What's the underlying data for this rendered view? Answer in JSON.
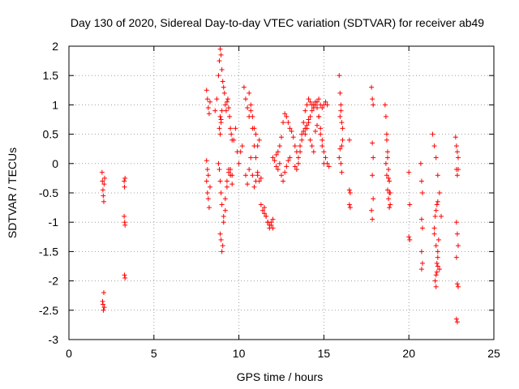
{
  "chart_data": {
    "type": "scatter",
    "title": "Day 130 of 2020, Sidereal Day-to-day VTEC variation (SDTVAR) for receiver ab49",
    "xlabel": "GPS time / hours",
    "ylabel": "SDTVAR / TECUs",
    "xlim": [
      0,
      25
    ],
    "ylim": [
      -3,
      2
    ],
    "xticks": [
      0,
      5,
      10,
      15,
      20,
      25
    ],
    "yticks": [
      -3,
      -2.5,
      -2,
      -1.5,
      -1,
      -0.5,
      0,
      0.5,
      1,
      1.5,
      2
    ],
    "xtick_labels": [
      "0",
      "5",
      "10",
      "15",
      "20",
      "25"
    ],
    "ytick_labels": [
      "-3",
      "-2.5",
      "-2",
      "-1.5",
      "-1",
      "-0.5",
      "0",
      "0.5",
      "1",
      "1.5",
      "2"
    ],
    "grid": true,
    "marker": "+",
    "color": "#ff0000",
    "series": [
      {
        "name": "SDTVAR",
        "x": [
          1.95,
          1.97,
          2.0,
          2.02,
          2.05,
          2.07,
          2.1,
          1.98,
          2.0,
          2.03,
          2.05,
          2.08,
          3.25,
          3.27,
          3.3,
          3.25,
          3.28,
          3.3,
          3.27,
          3.3,
          8.1,
          8.15,
          8.2,
          8.25,
          8.3,
          8.1,
          8.15,
          8.2,
          8.25,
          8.1,
          8.15,
          8.2,
          8.3,
          8.6,
          8.7,
          8.8,
          8.85,
          8.9,
          8.95,
          9.0,
          9.05,
          9.1,
          9.15,
          9.2,
          9.25,
          9.3,
          9.35,
          9.4,
          9.45,
          9.5,
          9.55,
          9.6,
          8.8,
          8.85,
          8.9,
          8.95,
          9.0,
          9.1,
          9.2,
          9.3,
          9.4,
          9.5,
          9.6,
          8.9,
          8.95,
          9.0,
          9.05,
          9.1,
          9.2,
          9.3,
          9.4,
          9.5,
          9.6,
          8.85,
          8.9,
          8.95,
          9.0,
          8.9,
          8.95,
          9.7,
          9.8,
          9.9,
          10.0,
          10.1,
          10.2,
          10.3,
          10.4,
          10.5,
          10.6,
          10.7,
          10.8,
          10.9,
          11.0,
          11.1,
          11.2,
          10.4,
          10.5,
          10.6,
          10.7,
          10.8,
          10.9,
          11.0,
          11.1,
          10.6,
          10.7,
          10.8,
          10.9,
          11.0,
          11.1,
          11.2,
          11.3,
          11.3,
          11.4,
          11.5,
          11.6,
          11.7,
          11.8,
          11.9,
          12.0,
          11.5,
          11.6,
          11.7,
          11.8,
          11.9,
          12.0,
          12.0,
          12.1,
          12.2,
          12.3,
          12.4,
          12.5,
          12.6,
          12.7,
          12.8,
          12.9,
          13.0,
          13.1,
          13.2,
          13.3,
          13.4,
          13.5,
          12.2,
          12.3,
          12.4,
          12.5,
          12.6,
          12.7,
          12.8,
          12.9,
          13.0,
          13.3,
          13.4,
          13.5,
          13.6,
          13.7,
          13.8,
          13.9,
          14.0,
          14.1,
          14.2,
          14.3,
          14.4,
          14.5,
          14.6,
          14.7,
          14.8,
          14.9,
          15.0,
          15.1,
          15.2,
          15.3,
          13.6,
          13.7,
          13.8,
          13.9,
          14.0,
          14.1,
          14.2,
          14.3,
          14.4,
          14.5,
          14.6,
          14.7,
          14.8,
          14.9,
          15.0,
          15.1,
          15.2,
          13.9,
          14.0,
          14.1,
          14.2,
          14.3,
          14.4,
          14.5,
          14.6,
          14.7,
          14.8,
          14.9,
          15.0,
          15.9,
          15.95,
          16.0,
          16.05,
          16.1,
          15.9,
          15.95,
          16.0,
          16.05,
          16.1,
          15.95,
          16.0,
          16.05,
          16.5,
          16.55,
          16.5,
          16.55,
          16.5,
          17.8,
          17.85,
          17.9,
          17.85,
          17.9,
          17.85,
          17.9,
          17.8,
          17.85,
          18.6,
          18.65,
          18.7,
          18.75,
          18.8,
          18.85,
          18.9,
          18.65,
          18.7,
          18.75,
          18.8,
          18.85,
          18.7,
          18.75,
          18.8,
          18.85,
          18.9,
          20.0,
          20.05,
          20.0,
          20.05,
          20.7,
          20.75,
          20.8,
          20.75,
          20.8,
          20.75,
          20.8,
          20.75,
          21.4,
          21.5,
          21.6,
          21.7,
          21.8,
          21.9,
          21.5,
          21.6,
          21.7,
          21.8,
          21.55,
          21.6,
          21.65,
          21.7,
          21.75,
          21.5,
          21.55,
          21.6,
          21.65,
          21.7,
          21.6,
          21.65,
          21.7,
          22.75,
          22.8,
          22.85,
          22.9,
          22.8,
          22.85,
          22.9,
          22.8,
          22.85,
          22.9,
          22.8,
          22.85,
          22.9,
          22.8,
          22.85
        ],
        "y": [
          -0.15,
          -0.3,
          -0.45,
          -0.55,
          -0.65,
          -0.35,
          -0.25,
          -2.35,
          -2.4,
          -2.5,
          -2.2,
          -2.45,
          -0.3,
          -0.4,
          -0.25,
          -0.9,
          -1.0,
          -1.05,
          -1.9,
          -1.95,
          1.25,
          1.1,
          0.95,
          0.85,
          1.05,
          -0.3,
          -0.5,
          -0.6,
          -0.75,
          0.05,
          -0.1,
          -0.2,
          -0.4,
          0.9,
          1.1,
          1.5,
          1.75,
          1.95,
          1.85,
          1.6,
          1.4,
          1.3,
          1.2,
          1.0,
          0.9,
          1.05,
          1.1,
          0.95,
          0.8,
          0.6,
          0.5,
          0.4,
          0.0,
          -0.1,
          -0.3,
          -0.5,
          -0.7,
          -0.9,
          -0.6,
          -0.3,
          -0.1,
          -0.2,
          -0.35,
          -1.2,
          -1.3,
          -1.5,
          -1.4,
          -1.0,
          -0.8,
          -0.4,
          -0.15,
          -0.1,
          -0.2,
          0.6,
          0.8,
          0.7,
          0.9,
          0.5,
          0.75,
          0.4,
          0.6,
          0.2,
          0.0,
          0.2,
          0.3,
          1.3,
          1.1,
          0.95,
          1.2,
          1.0,
          0.8,
          0.6,
          0.5,
          0.3,
          0.4,
          -0.2,
          -0.35,
          -0.1,
          0.1,
          -0.2,
          -0.4,
          -0.3,
          -0.15,
          0.8,
          0.9,
          0.6,
          0.3,
          0.1,
          -0.2,
          -0.3,
          -0.25,
          -0.7,
          -0.8,
          -0.85,
          -0.9,
          -1.0,
          -1.05,
          -1.0,
          -0.95,
          -0.75,
          -0.9,
          -1.0,
          -1.1,
          -1.05,
          -1.1,
          0.1,
          0.05,
          0.15,
          0.2,
          0.3,
          0.45,
          0.7,
          0.85,
          0.8,
          0.7,
          0.6,
          0.55,
          0.45,
          0.3,
          0.2,
          0.0,
          -0.05,
          -0.1,
          0.0,
          -0.2,
          -0.3,
          -0.15,
          -0.05,
          0.05,
          0.1,
          -0.05,
          -0.1,
          0.1,
          0.2,
          0.4,
          0.55,
          0.6,
          0.65,
          0.75,
          0.8,
          0.9,
          1.0,
          1.05,
          0.95,
          0.8,
          0.6,
          0.4,
          0.2,
          0.1,
          0.0,
          -0.05,
          0.3,
          0.5,
          0.7,
          0.9,
          1.0,
          1.1,
          1.05,
          1.0,
          0.95,
          1.0,
          1.05,
          1.1,
          1.0,
          0.95,
          1.0,
          1.05,
          1.0,
          0.5,
          0.6,
          0.7,
          0.4,
          0.3,
          0.2,
          0.55,
          0.65,
          0.8,
          0.5,
          0.3,
          0.0,
          1.5,
          1.2,
          0.9,
          0.7,
          0.4,
          0.1,
          0.25,
          0.0,
          -0.15,
          0.6,
          0.8,
          1.0,
          0.3,
          -0.45,
          -0.5,
          -0.7,
          -0.75,
          0.4,
          1.3,
          1.1,
          1.0,
          0.35,
          0.1,
          -0.2,
          -0.6,
          -0.8,
          -0.95,
          1.0,
          0.8,
          0.5,
          0.2,
          -0.1,
          -0.3,
          -0.5,
          0.0,
          -0.2,
          -0.45,
          -0.6,
          -0.75,
          0.4,
          0.1,
          -0.25,
          -0.5,
          -0.7,
          -0.15,
          -0.7,
          -1.25,
          -1.3,
          0.0,
          -0.3,
          -0.5,
          -0.95,
          -1.1,
          -1.5,
          -1.7,
          -1.8,
          0.5,
          0.3,
          0.1,
          -0.2,
          -0.5,
          -0.9,
          -1.2,
          -1.4,
          -1.6,
          -1.8,
          -2.0,
          -1.9,
          -1.7,
          -1.5,
          -1.3,
          -1.1,
          -0.9,
          -0.8,
          -0.7,
          -0.65,
          -2.1,
          -1.85,
          -1.75,
          0.45,
          0.3,
          0.2,
          0.1,
          -0.1,
          -0.2,
          -0.1,
          -1.0,
          -1.2,
          -1.4,
          -1.6,
          -2.05,
          -2.1,
          -2.65,
          -2.7
        ]
      }
    ]
  }
}
